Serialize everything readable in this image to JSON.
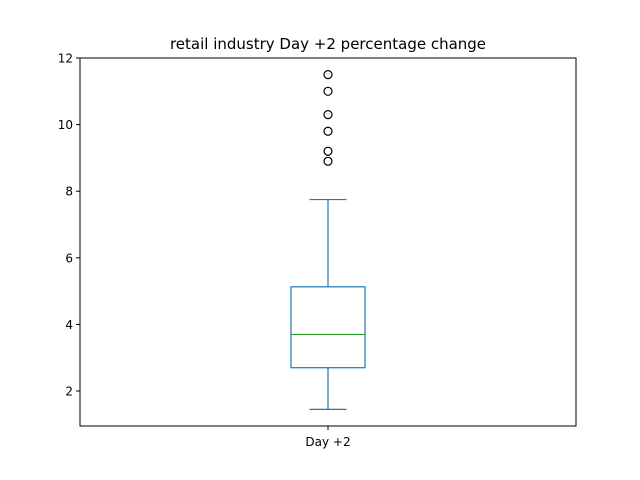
{
  "chart_data": {
    "type": "box",
    "title": "retail industry Day +2 percentage change",
    "xlabel": "",
    "ylabel": "",
    "categories": [
      "Day +2"
    ],
    "ylim": [
      0.95,
      12.0
    ],
    "yticks": [
      2,
      4,
      6,
      8,
      10,
      12
    ],
    "grid": false,
    "boxes": [
      {
        "name": "Day +2",
        "whisker_low": 1.45,
        "q1": 2.7,
        "median": 3.7,
        "q3": 5.13,
        "whisker_high": 7.75,
        "outliers": [
          8.9,
          9.2,
          9.8,
          10.3,
          11.0,
          11.5
        ]
      }
    ],
    "colors": {
      "box": "#1f77b4",
      "median": "#2ca02c",
      "outlier_edge": "#000000"
    }
  }
}
